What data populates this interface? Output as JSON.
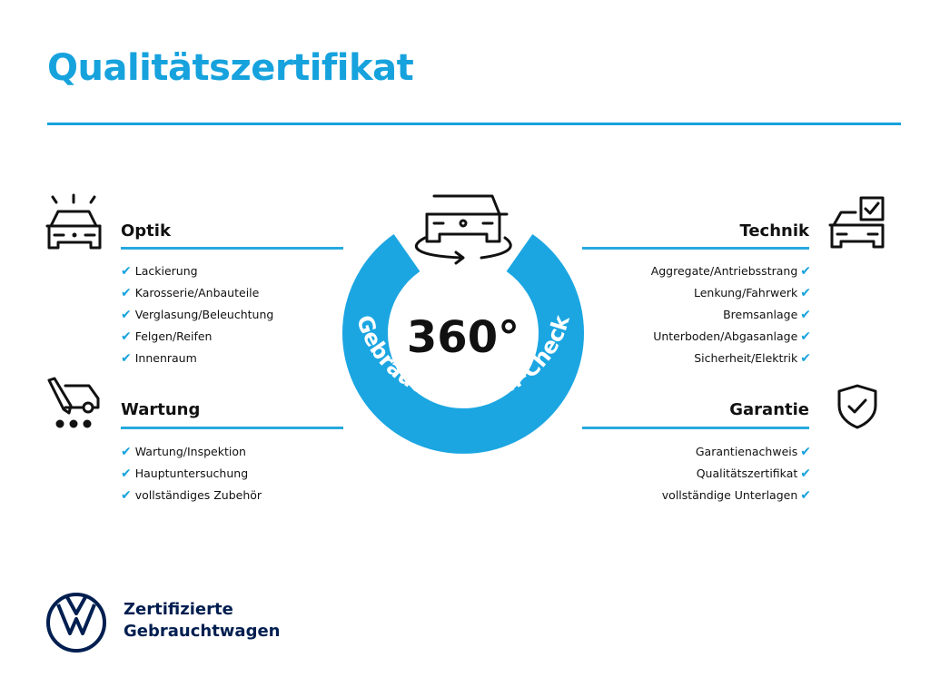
{
  "title": "Qualitätszertifikat",
  "colors": {
    "accent": "#16a2dd",
    "brand_navy": "#001e50",
    "text": "#111111"
  },
  "center": {
    "degrees": "360°",
    "arc_text": "Gebrauchtwagen-Check",
    "icon": "car-rotate-icon"
  },
  "sections": {
    "optik": {
      "heading": "Optik",
      "icon": "car-lights-icon",
      "items": [
        "Lackierung",
        "Karosserie/Anbauteile",
        "Verglasung/Beleuchtung",
        "Felgen/Reifen",
        "Innenraum"
      ]
    },
    "wartung": {
      "heading": "Wartung",
      "icon": "service-van-icon",
      "items": [
        "Wartung/Inspektion",
        "Hauptuntersuchung",
        "vollständiges Zubehör"
      ]
    },
    "technik": {
      "heading": "Technik",
      "icon": "car-checklist-icon",
      "items": [
        "Aggregate/Antriebsstrang",
        "Lenkung/Fahrwerk",
        "Bremsanlage",
        "Unterboden/Abgasanlage",
        "Sicherheit/Elektrik"
      ]
    },
    "garantie": {
      "heading": "Garantie",
      "icon": "shield-check-icon",
      "items": [
        "Garantienachweis",
        "Qualitätszertifikat",
        "vollständige Unterlagen"
      ]
    }
  },
  "check_mark": "✔",
  "logo": {
    "line1": "Zertifizierte",
    "line2": "Gebrauchtwagen",
    "icon": "vw-logo-icon"
  }
}
